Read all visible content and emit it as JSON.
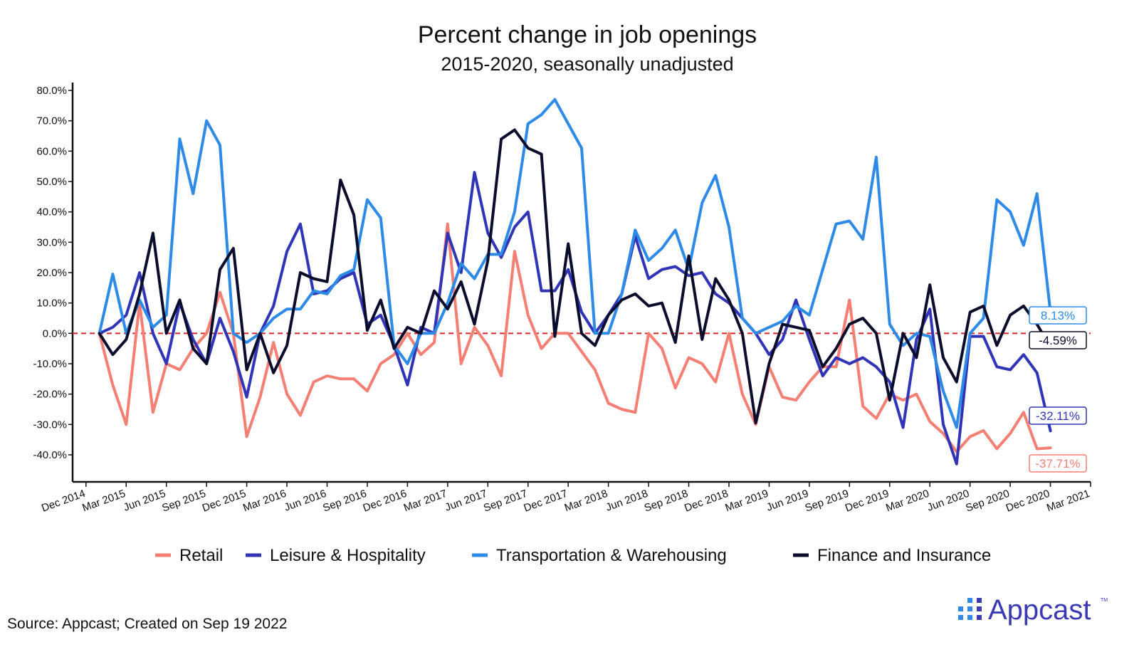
{
  "chart_data": {
    "type": "line",
    "title": "Percent change in job openings",
    "subtitle": "2015-2020, seasonally unadjusted",
    "xlabel": "",
    "ylabel": "",
    "y_ticks": [
      "80.0%",
      "70.0%",
      "60.0%",
      "50.0%",
      "40.0%",
      "30.0%",
      "20.0%",
      "10.0%",
      "0.0%",
      "-10.0%",
      "-20.0%",
      "-30.0%",
      "-40.0%"
    ],
    "ylim": [
      -48,
      82
    ],
    "x_range": [
      "2014-11",
      "2021-03"
    ],
    "x_tick_labels": [
      "Dec 2014",
      "Mar 2015",
      "Jun 2015",
      "Sep 2015",
      "Dec 2015",
      "Mar 2016",
      "Jun 2016",
      "Sep 2016",
      "Dec 2016",
      "Mar 2017",
      "Jun 2017",
      "Sep 2017",
      "Dec 2017",
      "Mar 2018",
      "Jun 2018",
      "Sep 2018",
      "Dec 2018",
      "Mar 2019",
      "Jun 2019",
      "Sep 2019",
      "Dec 2019",
      "Mar 2020",
      "Jun 2020",
      "Sep 2020",
      "Dec 2020",
      "Mar 2021"
    ],
    "x_tick_dates": [
      "2014-12",
      "2015-03",
      "2015-06",
      "2015-09",
      "2015-12",
      "2016-03",
      "2016-06",
      "2016-09",
      "2016-12",
      "2017-03",
      "2017-06",
      "2017-09",
      "2017-12",
      "2018-03",
      "2018-06",
      "2018-09",
      "2018-12",
      "2019-03",
      "2019-06",
      "2019-09",
      "2019-12",
      "2020-03",
      "2020-06",
      "2020-09",
      "2020-12",
      "2021-03"
    ],
    "zero_line": {
      "value": 0,
      "color": "#d62728",
      "style": "dashed"
    },
    "grid": false,
    "legend_position": "bottom",
    "series": [
      {
        "name": "Retail",
        "color": "#f47f72",
        "start": "2015-01",
        "values": [
          0,
          -17,
          -30,
          10,
          -26,
          -10,
          -12,
          -5,
          0,
          13.5,
          0,
          -34,
          -21,
          -3,
          -20,
          -27,
          -16,
          -14,
          -15,
          -15,
          -19,
          -10,
          -7,
          0,
          -7,
          -3,
          36,
          -10,
          2,
          -4,
          -14,
          27,
          6,
          -5,
          0,
          0,
          -6,
          -12,
          -23,
          -25,
          -26,
          0,
          -5,
          -18,
          -8,
          -10,
          -16,
          0,
          -20,
          -30,
          -11,
          -21,
          -22,
          -16,
          -11,
          -11,
          11,
          -24,
          -28,
          -20,
          -22,
          -20,
          -29,
          -33,
          -39,
          -34,
          -32,
          -38,
          -33,
          -26,
          -38,
          -37.71
        ]
      },
      {
        "name": "Leisure & Hospitality",
        "color": "#3035b8",
        "start": "2015-01",
        "values": [
          0,
          2,
          6,
          20,
          0,
          -10,
          10,
          -2,
          -10,
          5,
          -6,
          -21,
          0,
          9,
          27,
          36,
          13,
          14,
          18,
          20,
          3,
          6,
          -4,
          -17,
          2,
          0,
          33,
          20,
          53,
          33,
          25,
          35,
          40,
          14,
          14,
          21,
          7,
          0,
          6,
          13,
          32,
          18,
          21,
          22,
          19,
          20,
          13,
          10,
          5,
          0,
          -7,
          -2,
          11,
          -2,
          -14,
          -8,
          -10,
          -8,
          -11,
          -16,
          -31,
          -2,
          8,
          -30,
          -43,
          -1,
          -1,
          -11,
          -12,
          -7,
          -13,
          -32.11
        ]
      },
      {
        "name": "Transportation & Warehousing",
        "color": "#2d8ae6",
        "start": "2015-01",
        "values": [
          0,
          19.5,
          0,
          11,
          2,
          6,
          64,
          46,
          70,
          62,
          0,
          -3,
          0,
          5,
          8,
          8,
          14,
          13,
          19,
          21,
          44,
          38,
          -4,
          -10,
          0,
          0,
          10,
          23,
          18,
          26,
          26,
          40,
          69,
          72,
          77,
          69,
          61,
          0,
          0,
          13,
          34,
          24,
          28,
          34,
          21,
          43,
          52,
          35,
          5,
          0,
          2,
          4,
          9,
          6,
          21,
          36,
          37,
          31,
          58,
          3,
          -4,
          0,
          -1,
          -19,
          -31,
          0,
          5,
          44,
          40,
          29,
          46,
          7,
          8.13
        ]
      },
      {
        "name": "Finance and Insurance",
        "color": "#0b0d2c",
        "start": "2015-01",
        "values": [
          0,
          -7,
          -2,
          13,
          33,
          0,
          11,
          -5,
          -10,
          21,
          28,
          -12,
          0,
          -13,
          -4,
          20,
          18,
          17,
          50.5,
          39,
          1,
          11,
          -5,
          2,
          0,
          14,
          8,
          17,
          3,
          24,
          64,
          67,
          61,
          59,
          -1,
          29.5,
          0,
          -4,
          6,
          11,
          13,
          9,
          10,
          -3,
          25.5,
          -2,
          18,
          11,
          0,
          -29.5,
          -10,
          3,
          2,
          1,
          -11,
          -5,
          3,
          5,
          0,
          -22,
          0,
          -8,
          16,
          -8,
          -16,
          7,
          9,
          -4,
          6,
          9,
          3,
          -4.59
        ]
      }
    ],
    "end_labels": [
      "8.13%",
      "-4.59%",
      "-32.11%",
      "-37.71%"
    ],
    "source": "Source: Appcast; Created on Sep 19 2022",
    "brand": "Appcast",
    "brand_mark": "TM"
  }
}
